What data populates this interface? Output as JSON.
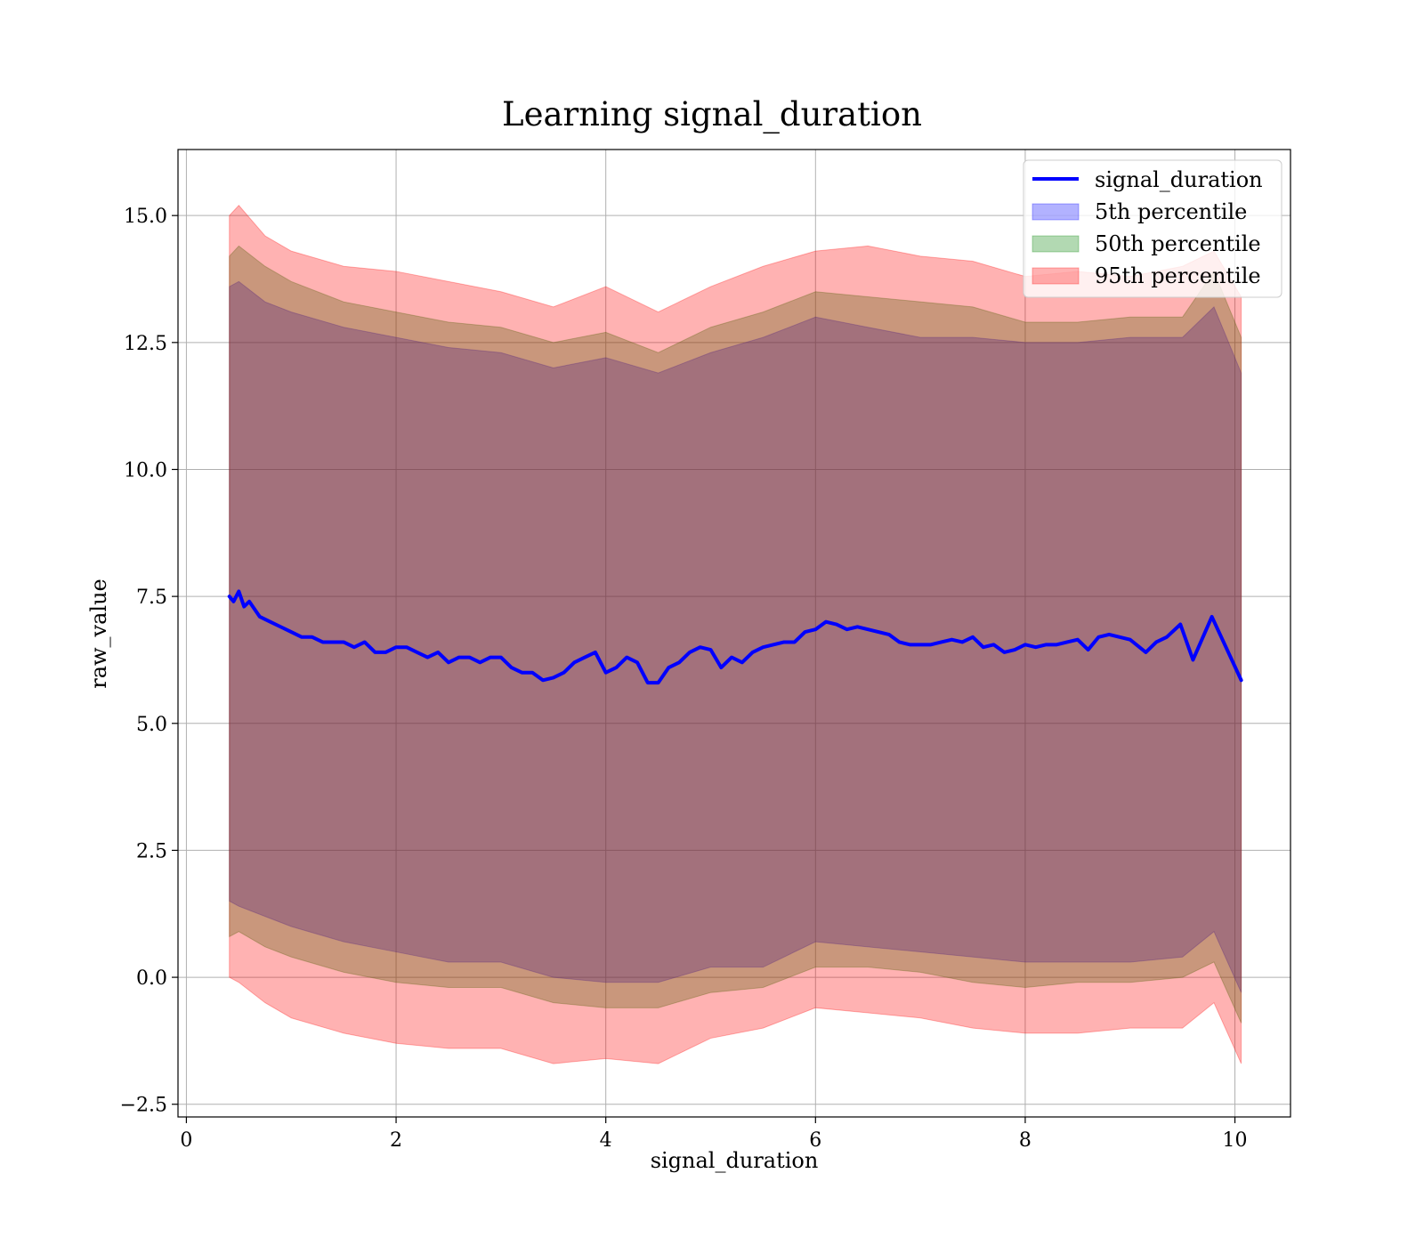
{
  "chart_data": {
    "type": "line",
    "title": "Learning signal_duration",
    "xlabel": "signal_duration",
    "ylabel": "raw_value",
    "xlim": [
      -0.08,
      10.53
    ],
    "ylim": [
      -2.75,
      16.3
    ],
    "xticks": [
      0,
      2,
      4,
      6,
      8,
      10
    ],
    "xtick_labels": [
      "0",
      "2",
      "4",
      "6",
      "8",
      "10"
    ],
    "yticks": [
      -2.5,
      0.0,
      2.5,
      5.0,
      7.5,
      10.0,
      12.5,
      15.0
    ],
    "ytick_labels": [
      "−2.5",
      "0.0",
      "2.5",
      "5.0",
      "7.5",
      "10.0",
      "12.5",
      "15.0"
    ],
    "grid": true,
    "legend_position": "top-right",
    "series": [
      {
        "name": "signal_duration",
        "kind": "line",
        "color": "#0000ff",
        "x": [
          0.41,
          0.45,
          0.5,
          0.55,
          0.6,
          0.7,
          0.8,
          0.9,
          1.0,
          1.1,
          1.2,
          1.3,
          1.4,
          1.5,
          1.6,
          1.7,
          1.8,
          1.9,
          2.0,
          2.1,
          2.2,
          2.3,
          2.4,
          2.5,
          2.6,
          2.7,
          2.8,
          2.9,
          3.0,
          3.1,
          3.2,
          3.3,
          3.4,
          3.5,
          3.6,
          3.7,
          3.8,
          3.9,
          4.0,
          4.1,
          4.2,
          4.3,
          4.4,
          4.5,
          4.6,
          4.7,
          4.8,
          4.9,
          5.0,
          5.1,
          5.2,
          5.3,
          5.4,
          5.5,
          5.6,
          5.7,
          5.8,
          5.9,
          6.0,
          6.1,
          6.2,
          6.3,
          6.4,
          6.5,
          6.6,
          6.7,
          6.8,
          6.9,
          7.0,
          7.1,
          7.2,
          7.3,
          7.4,
          7.5,
          7.6,
          7.7,
          7.8,
          7.9,
          8.0,
          8.1,
          8.2,
          8.3,
          8.4,
          8.5,
          8.6,
          8.7,
          8.8,
          8.9,
          9.0,
          9.15,
          9.25,
          9.35,
          9.48,
          9.6,
          9.78,
          10.06
        ],
        "y": [
          7.5,
          7.4,
          7.6,
          7.3,
          7.4,
          7.1,
          7.0,
          6.9,
          6.8,
          6.7,
          6.7,
          6.6,
          6.6,
          6.6,
          6.5,
          6.6,
          6.4,
          6.4,
          6.5,
          6.5,
          6.4,
          6.3,
          6.4,
          6.2,
          6.3,
          6.3,
          6.2,
          6.3,
          6.3,
          6.1,
          6.0,
          6.0,
          5.85,
          5.9,
          6.0,
          6.2,
          6.3,
          6.4,
          6.0,
          6.1,
          6.3,
          6.2,
          5.8,
          5.8,
          6.1,
          6.2,
          6.4,
          6.5,
          6.45,
          6.1,
          6.3,
          6.2,
          6.4,
          6.5,
          6.55,
          6.6,
          6.6,
          6.8,
          6.85,
          7.0,
          6.95,
          6.85,
          6.9,
          6.85,
          6.8,
          6.75,
          6.6,
          6.55,
          6.55,
          6.55,
          6.6,
          6.65,
          6.6,
          6.7,
          6.5,
          6.55,
          6.4,
          6.45,
          6.55,
          6.5,
          6.55,
          6.55,
          6.6,
          6.65,
          6.45,
          6.7,
          6.75,
          6.7,
          6.65,
          6.4,
          6.6,
          6.7,
          6.95,
          6.25,
          7.1,
          5.85
        ]
      },
      {
        "name": "5th percentile",
        "kind": "band",
        "color": "#0000ff",
        "x": [
          0.41,
          0.5,
          0.75,
          1.0,
          1.5,
          2.0,
          2.5,
          3.0,
          3.5,
          4.0,
          4.5,
          5.0,
          5.5,
          6.0,
          6.5,
          7.0,
          7.5,
          8.0,
          8.5,
          9.0,
          9.5,
          9.8,
          10.06
        ],
        "lower": [
          1.5,
          1.4,
          1.2,
          1.0,
          0.7,
          0.5,
          0.3,
          0.3,
          0.0,
          -0.1,
          -0.1,
          0.2,
          0.2,
          0.7,
          0.6,
          0.5,
          0.4,
          0.3,
          0.3,
          0.3,
          0.4,
          0.9,
          -0.3
        ],
        "upper": [
          13.6,
          13.7,
          13.3,
          13.1,
          12.8,
          12.6,
          12.4,
          12.3,
          12.0,
          12.2,
          11.9,
          12.3,
          12.6,
          13.0,
          12.8,
          12.6,
          12.6,
          12.5,
          12.5,
          12.6,
          12.6,
          13.2,
          11.9
        ]
      },
      {
        "name": "50th percentile",
        "kind": "band",
        "color": "#008000",
        "x": [
          0.41,
          0.5,
          0.75,
          1.0,
          1.5,
          2.0,
          2.5,
          3.0,
          3.5,
          4.0,
          4.5,
          5.0,
          5.5,
          6.0,
          6.5,
          7.0,
          7.5,
          8.0,
          8.5,
          9.0,
          9.5,
          9.8,
          10.06
        ],
        "lower": [
          0.8,
          0.9,
          0.6,
          0.4,
          0.1,
          -0.1,
          -0.2,
          -0.2,
          -0.5,
          -0.6,
          -0.6,
          -0.3,
          -0.2,
          0.2,
          0.2,
          0.1,
          -0.1,
          -0.2,
          -0.1,
          -0.1,
          0.0,
          0.3,
          -0.9
        ],
        "upper": [
          14.2,
          14.4,
          14.0,
          13.7,
          13.3,
          13.1,
          12.9,
          12.8,
          12.5,
          12.7,
          12.3,
          12.8,
          13.1,
          13.5,
          13.4,
          13.3,
          13.2,
          12.9,
          12.9,
          13.0,
          13.0,
          13.9,
          12.6
        ]
      },
      {
        "name": "95th percentile",
        "kind": "band",
        "color": "#ff0000",
        "x": [
          0.41,
          0.5,
          0.75,
          1.0,
          1.5,
          2.0,
          2.5,
          3.0,
          3.5,
          4.0,
          4.5,
          5.0,
          5.5,
          6.0,
          6.5,
          7.0,
          7.5,
          8.0,
          8.5,
          9.0,
          9.5,
          9.8,
          10.06
        ],
        "lower": [
          0.0,
          -0.1,
          -0.5,
          -0.8,
          -1.1,
          -1.3,
          -1.4,
          -1.4,
          -1.7,
          -1.6,
          -1.7,
          -1.2,
          -1.0,
          -0.6,
          -0.7,
          -0.8,
          -1.0,
          -1.1,
          -1.1,
          -1.0,
          -1.0,
          -0.5,
          -1.7
        ],
        "upper": [
          15.0,
          15.2,
          14.6,
          14.3,
          14.0,
          13.9,
          13.7,
          13.5,
          13.2,
          13.6,
          13.1,
          13.6,
          14.0,
          14.3,
          14.4,
          14.2,
          14.1,
          13.8,
          13.9,
          13.8,
          14.0,
          14.3,
          13.4
        ]
      }
    ]
  }
}
